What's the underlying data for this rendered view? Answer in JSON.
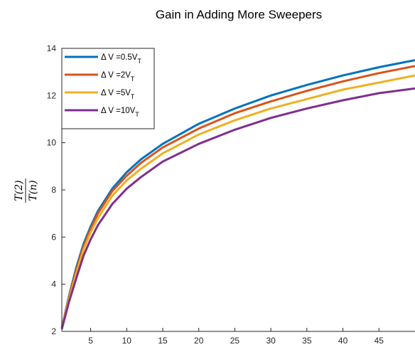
{
  "chart_data": {
    "type": "line",
    "title": "Gain in Adding More Sweepers",
    "ylabel_num": "T(2)",
    "ylabel_den": "T(n)",
    "xlim": [
      1,
      50
    ],
    "ylim": [
      2,
      14
    ],
    "xticks": [
      5,
      10,
      15,
      20,
      25,
      30,
      35,
      40,
      45
    ],
    "yticks": [
      2,
      4,
      6,
      8,
      10,
      12,
      14
    ],
    "legend_position": "top-left",
    "x": [
      1,
      2,
      3,
      4,
      5,
      6,
      8,
      10,
      12,
      15,
      20,
      25,
      30,
      35,
      40,
      45,
      50
    ],
    "series": [
      {
        "legend_prefix": "Δ V =0.5V",
        "legend_sub": "T",
        "color": "#0072BD",
        "values": [
          2.15,
          3.5,
          4.7,
          5.7,
          6.45,
          7.1,
          8.05,
          8.75,
          9.3,
          9.95,
          10.8,
          11.45,
          12.0,
          12.45,
          12.85,
          13.2,
          13.5
        ]
      },
      {
        "legend_prefix": "Δ V =2V",
        "legend_sub": "T",
        "color": "#D95319",
        "values": [
          2.15,
          3.45,
          4.6,
          5.6,
          6.35,
          7.0,
          7.95,
          8.6,
          9.15,
          9.8,
          10.6,
          11.25,
          11.75,
          12.2,
          12.6,
          12.95,
          13.25
        ]
      },
      {
        "legend_prefix": "Δ V =5V",
        "legend_sub": "T",
        "color": "#EDB120",
        "values": [
          2.15,
          3.35,
          4.45,
          5.45,
          6.2,
          6.8,
          7.75,
          8.4,
          8.9,
          9.55,
          10.35,
          10.95,
          11.45,
          11.85,
          12.25,
          12.55,
          12.85
        ]
      },
      {
        "legend_prefix": "Δ V =10V",
        "legend_sub": "T",
        "color": "#7E2F8E",
        "values": [
          2.1,
          3.25,
          4.25,
          5.2,
          5.9,
          6.5,
          7.4,
          8.05,
          8.55,
          9.2,
          9.95,
          10.55,
          11.05,
          11.45,
          11.8,
          12.1,
          12.3
        ]
      }
    ]
  }
}
